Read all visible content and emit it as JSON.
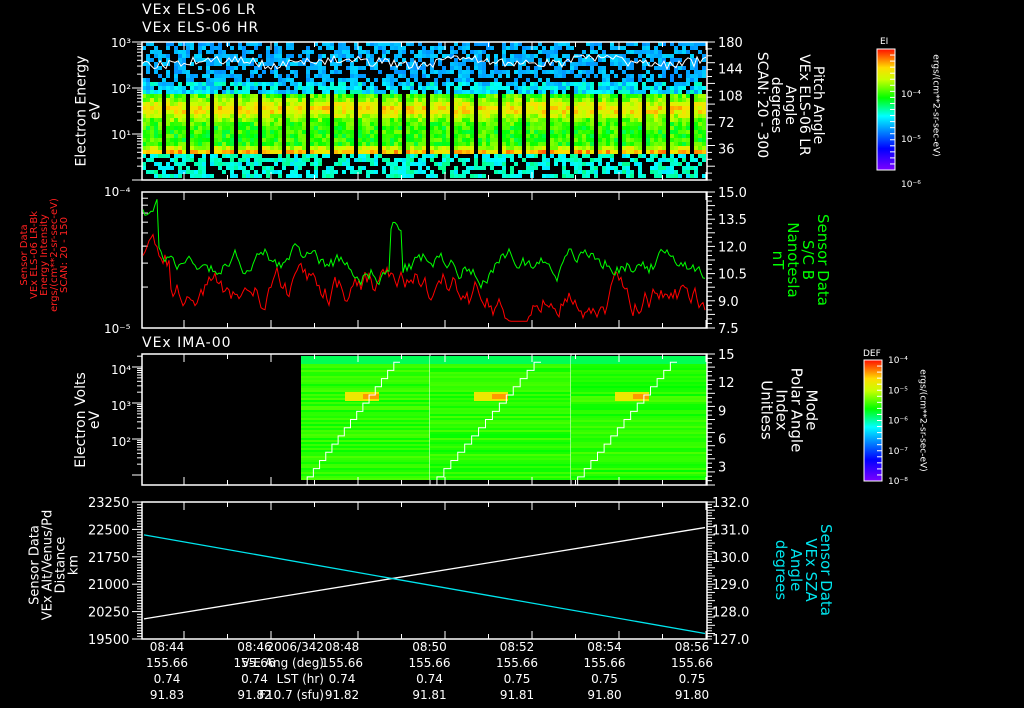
{
  "header": {
    "title_line1": "VEx ELS-06 LR",
    "title_line2": "VEx ELS-06 HR"
  },
  "panels": {
    "p1": {
      "ylabel": "Electron Energy\neV",
      "yticks_left": [
        "10³",
        "10²",
        "10¹"
      ],
      "yticks_right": [
        "180",
        "144",
        "108",
        "72",
        "36"
      ],
      "right_label": "Pitch Angle\nVEx ELS-06 LR\nAngle\ndegrees\nSCAN: 20 - 300",
      "colorbar": {
        "title": "EI",
        "ticks": [
          "10⁻⁴",
          "10⁻⁵",
          "10⁻⁶"
        ],
        "unit": "ergs/(cm**2-sr-sec-eV)"
      }
    },
    "p2": {
      "ylabel": "Sensor Data\nVEx ELS-06 LR-Bk\nEnergy Intensity\nergs/(cm**2-sr-sec-eV)\nSCAN: 20 - 150",
      "yticks_left": [
        "10⁻⁴",
        "10⁻⁵"
      ],
      "yticks_right": [
        "15.0",
        "13.5",
        "12.0",
        "10.5",
        "9.0",
        "7.5"
      ],
      "right_label": "Sensor Data\nS/C B\nNanotesla\nnT"
    },
    "p3": {
      "title": "VEx IMA-00",
      "ylabel": "Electron Volts\neV",
      "yticks_left": [
        "10⁴",
        "10³",
        "10²"
      ],
      "yticks_right": [
        "15",
        "12",
        "9",
        "6",
        "3"
      ],
      "right_label": "Mode\nPolar Angle\nIndex\nUnitless",
      "colorbar": {
        "title": "DEF",
        "ticks": [
          "10⁻⁴",
          "10⁻⁵",
          "10⁻⁶",
          "10⁻⁷",
          "10⁻⁸"
        ],
        "unit": "ergs/(cm**2-sr-sec-eV)"
      }
    },
    "p4": {
      "ylabel": "Sensor Data\nVEx Alt/Venus/Pd\nDistance\nkm",
      "yticks_left": [
        "23250",
        "22500",
        "21750",
        "21000",
        "20250",
        "19500"
      ],
      "yticks_right": [
        "132.0",
        "131.0",
        "130.0",
        "129.0",
        "128.0",
        "127.0"
      ],
      "right_label": "Sensor Data\nVEx SZA\nAngle\ndegrees"
    }
  },
  "footer": {
    "row_labels": [
      "2006/342",
      "V-E Ang (deg)",
      "LST (hr)",
      "F10.7 (sfu)"
    ],
    "columns": [
      {
        "time": "08:44",
        "ve": "155.66",
        "lst": "0.74",
        "f107": "91.83"
      },
      {
        "time": "08:46",
        "ve": "155.66",
        "lst": "0.74",
        "f107": "91.82"
      },
      {
        "time": "08:48",
        "ve": "155.66",
        "lst": "0.74",
        "f107": "91.82"
      },
      {
        "time": "08:50",
        "ve": "155.66",
        "lst": "0.74",
        "f107": "91.81"
      },
      {
        "time": "08:52",
        "ve": "155.66",
        "lst": "0.75",
        "f107": "91.81"
      },
      {
        "time": "08:54",
        "ve": "155.66",
        "lst": "0.75",
        "f107": "91.80"
      },
      {
        "time": "08:56",
        "ve": "155.66",
        "lst": "0.75",
        "f107": "91.80"
      }
    ]
  },
  "colors": {
    "axis": "#ffffff",
    "red_series": "#ff0000",
    "green_series": "#00ff00",
    "cyan_series": "#00e5ee",
    "white_series": "#ffffff",
    "p2_label": "#ff2020",
    "p2_right_label": "#00ff00",
    "p4_right_label": "#00e5ee"
  },
  "chart_data": [
    {
      "type": "heatmap",
      "title": "VEx ELS-06 LR / VEx ELS-06 HR",
      "xlabel": "UT 2006/342",
      "x_ticks": [
        "08:44",
        "08:46",
        "08:48",
        "08:50",
        "08:52",
        "08:54",
        "08:56"
      ],
      "ylabel": "Electron Energy (eV)",
      "ylim": [
        1,
        1000
      ],
      "yscale": "log",
      "y2label": "Pitch Angle (degrees)",
      "y2lim": [
        0,
        180
      ],
      "y2_ticks": [
        36,
        72,
        108,
        144,
        180
      ],
      "colorbar": {
        "label": "EI ergs/(cm**2-sr-sec-eV)",
        "ticks": [
          "1e-4",
          "1e-5",
          "1e-6"
        ]
      },
      "overlay": {
        "name": "Pitch Angle",
        "color": "#ffffff",
        "typical_range_deg": [
          100,
          150
        ]
      },
      "notes": "Intense (yellow/orange) electron flux between ~3 and ~60 eV; periodic data gaps (vertical black stripes) roughly every 20 s"
    },
    {
      "type": "line",
      "title": "",
      "x_ticks": [
        "08:44",
        "08:46",
        "08:48",
        "08:50",
        "08:52",
        "08:54",
        "08:56"
      ],
      "series": [
        {
          "name": "VEx ELS-06 LR-Bk Energy Intensity (SCAN 20-150)",
          "axis": "left",
          "color": "#ff0000",
          "yscale": "log",
          "ylim": [
            1e-05,
            0.0001
          ],
          "typical_value": 1.8e-05,
          "peak_value": 5e-05
        },
        {
          "name": "S/C B (nT)",
          "axis": "right",
          "color": "#00ff00",
          "ylim": [
            7.5,
            15.0
          ],
          "typical_value": 11.0,
          "peak_value": 14.2
        }
      ],
      "y2_ticks": [
        7.5,
        9.0,
        10.5,
        12.0,
        13.5,
        15.0
      ]
    },
    {
      "type": "heatmap",
      "title": "VEx IMA-00",
      "ylabel": "Electron Volts (eV)",
      "ylim": [
        10,
        30000
      ],
      "yscale": "log",
      "y2label": "Mode / Polar Angle Index (Unitless)",
      "y2lim": [
        0,
        15
      ],
      "y2_ticks": [
        3,
        6,
        9,
        12,
        15
      ],
      "data_start_time": "08:48",
      "sweeps": 3,
      "hotspot_energy_eV": 2000,
      "colorbar": {
        "label": "DEF ergs/(cm**2-sr-sec-eV)",
        "ticks": [
          "1e-4",
          "1e-5",
          "1e-6",
          "1e-7",
          "1e-8"
        ]
      },
      "overlay": {
        "name": "Polar Angle Index",
        "color": "#ffffff",
        "shape": "staircase 0→15 per sweep"
      }
    },
    {
      "type": "line",
      "x": [
        "08:44",
        "08:57"
      ],
      "series": [
        {
          "name": "VEx Alt/Venus/Pd Distance (km)",
          "axis": "left",
          "color": "#ffffff",
          "values": [
            20050,
            22550
          ]
        },
        {
          "name": "VEx SZA Angle (degrees)",
          "axis": "right",
          "color": "#00e5ee",
          "values": [
            130.8,
            127.2
          ]
        }
      ],
      "ylim": [
        19500,
        23250
      ],
      "y2lim": [
        127.0,
        132.0
      ],
      "y_ticks": [
        19500,
        20250,
        21000,
        21750,
        22500,
        23250
      ],
      "y2_ticks": [
        127.0,
        128.0,
        129.0,
        130.0,
        131.0,
        132.0
      ]
    }
  ]
}
